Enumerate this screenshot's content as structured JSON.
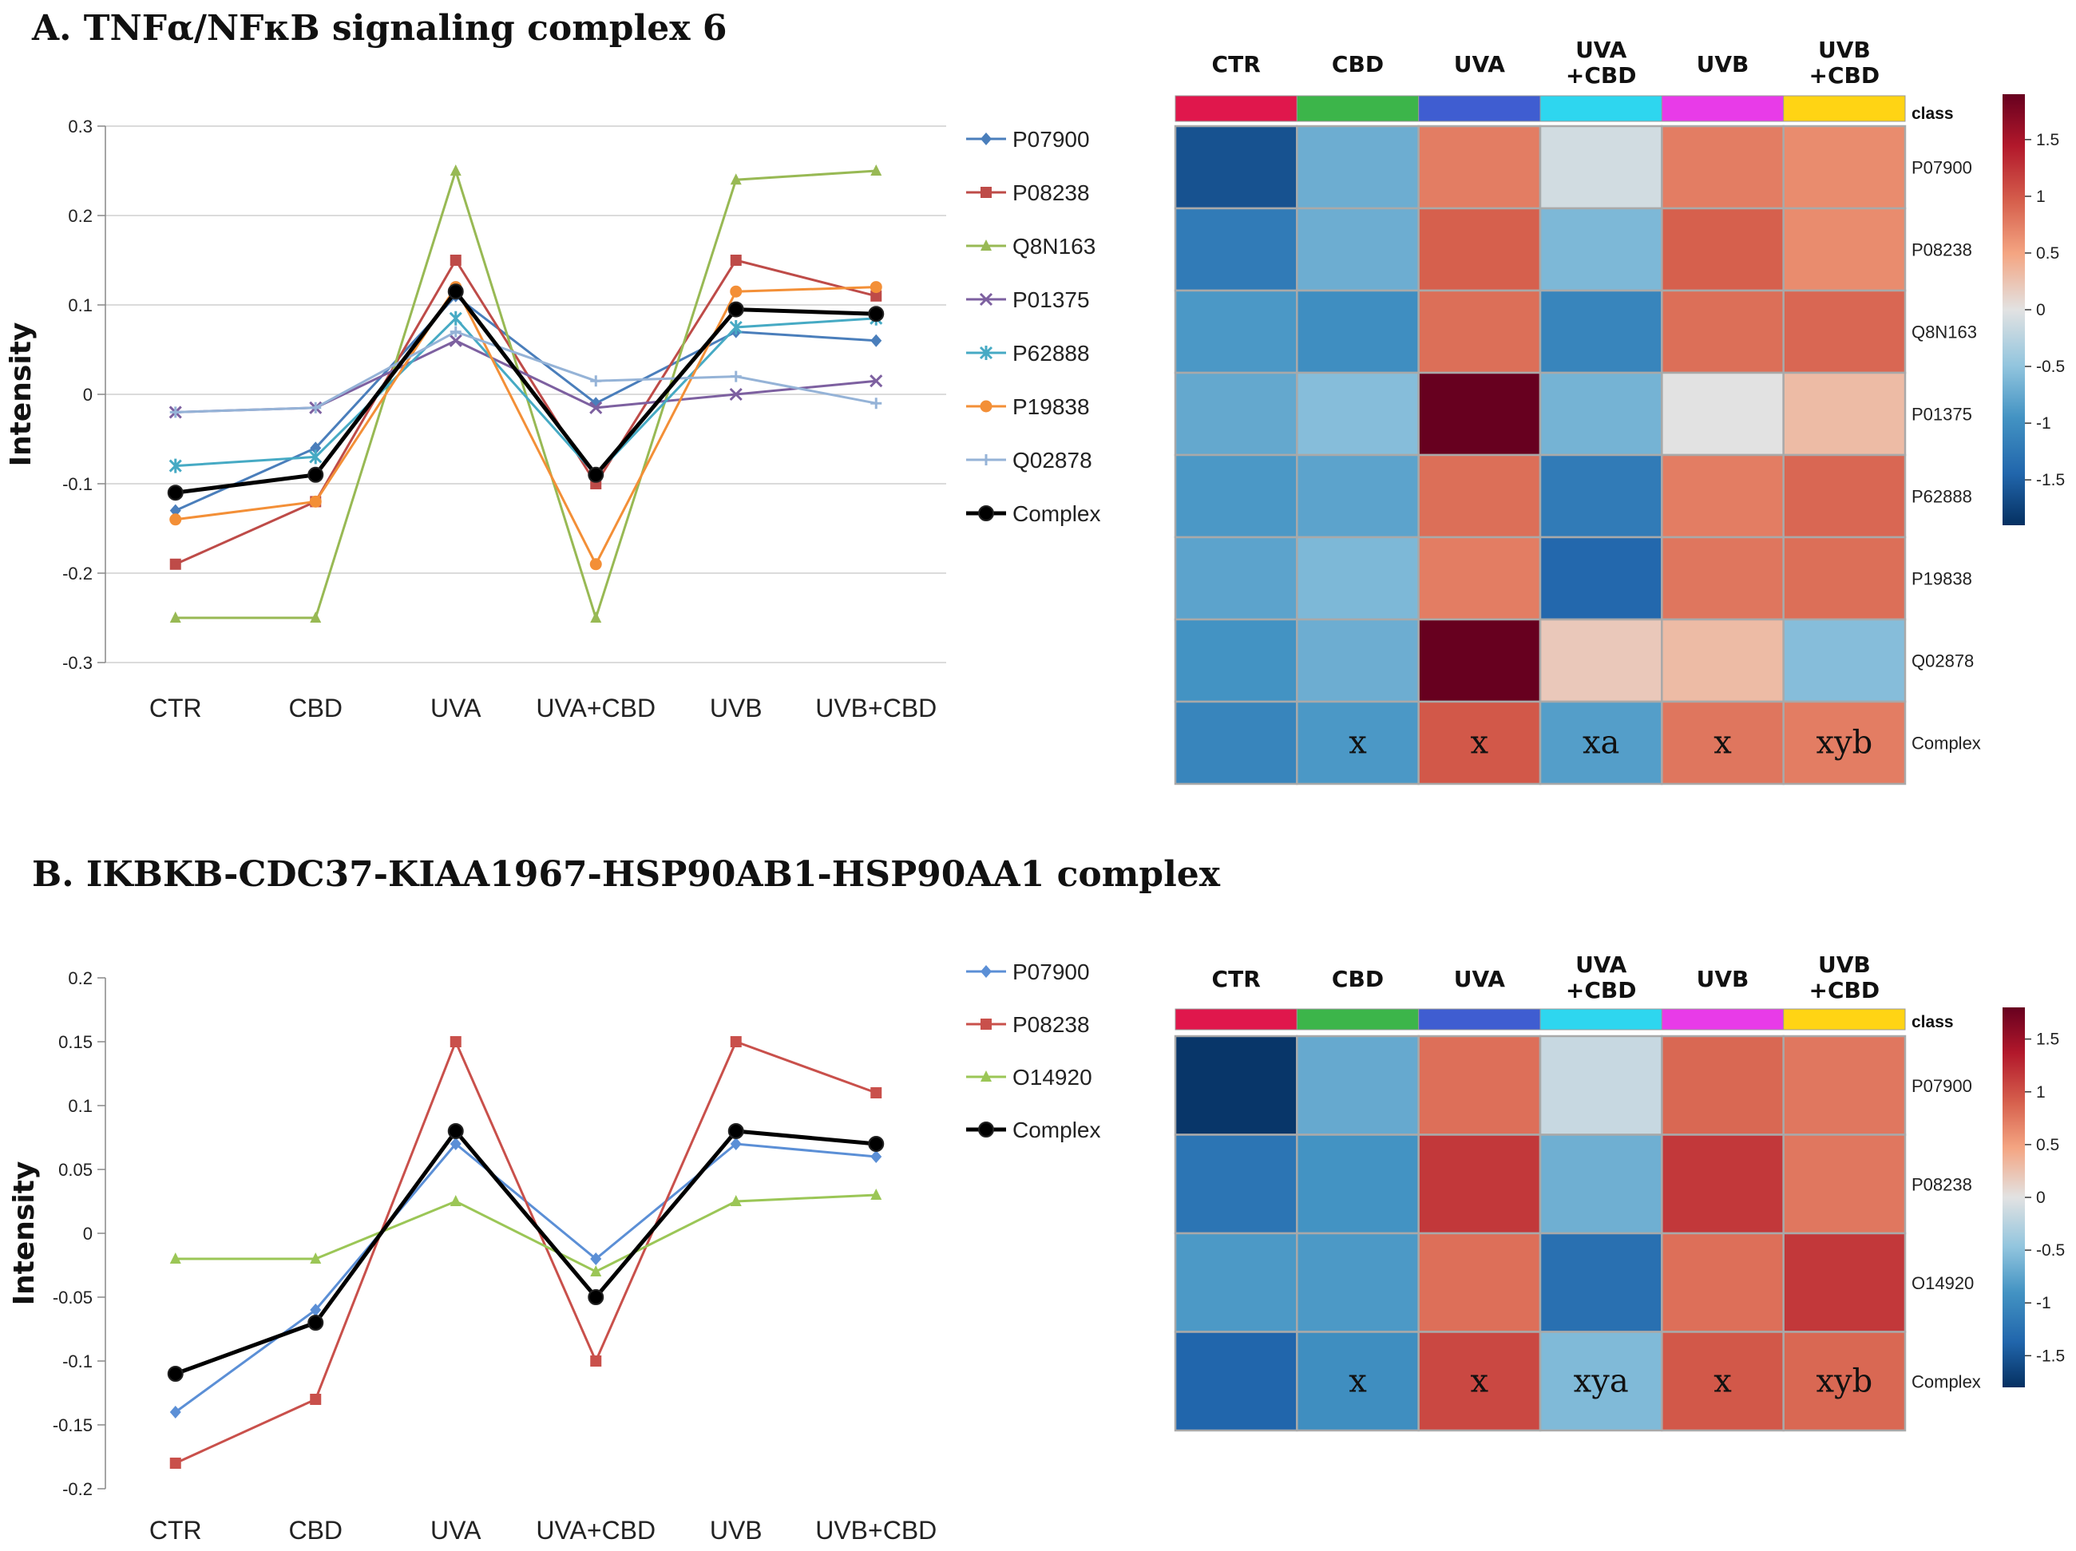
{
  "panels": {
    "a": {
      "title": "A. TNFα/NFκB signaling complex 6"
    },
    "b": {
      "title": "B. IKBKB-CDC37-KIAA1967-HSP90AB1-HSP90AA1 complex"
    }
  },
  "chart_data": [
    {
      "type": "line",
      "panel": "A",
      "title": "A. TNFα/NFκB signaling complex 6",
      "xlabel": "",
      "ylabel": "Intensity",
      "categories": [
        "CTR",
        "CBD",
        "UVA",
        "UVA+CBD",
        "UVB",
        "UVB+CBD"
      ],
      "ylim": [
        -0.3,
        0.3
      ],
      "yticks": [
        -0.3,
        -0.2,
        -0.1,
        0,
        0.1,
        0.2,
        0.3
      ],
      "ytick_labels": [
        "-0.3",
        "-0.2",
        "-0.1",
        "0",
        "0.1",
        "0.2",
        "0.3"
      ],
      "grid": true,
      "legend_position": "right",
      "series": [
        {
          "name": "P07900",
          "color": "#4a7ebb",
          "marker": "diamond",
          "values": [
            -0.13,
            -0.06,
            0.11,
            -0.01,
            0.07,
            0.06
          ]
        },
        {
          "name": "P08238",
          "color": "#be4b48",
          "marker": "square",
          "values": [
            -0.19,
            -0.12,
            0.15,
            -0.1,
            0.15,
            0.11
          ]
        },
        {
          "name": "Q8N163",
          "color": "#98b954",
          "marker": "triangle",
          "values": [
            -0.25,
            -0.25,
            0.25,
            -0.25,
            0.24,
            0.25
          ]
        },
        {
          "name": "P01375",
          "color": "#7d60a0",
          "marker": "x",
          "values": [
            -0.02,
            -0.015,
            0.06,
            -0.015,
            0.0,
            0.015
          ]
        },
        {
          "name": "P62888",
          "color": "#46aac4",
          "marker": "star",
          "values": [
            -0.08,
            -0.07,
            0.085,
            -0.09,
            0.075,
            0.085
          ]
        },
        {
          "name": "P19838",
          "color": "#f38f37",
          "marker": "circle",
          "values": [
            -0.14,
            -0.12,
            0.12,
            -0.19,
            0.115,
            0.12
          ]
        },
        {
          "name": "Q02878",
          "color": "#95b3d7",
          "marker": "plus",
          "values": [
            -0.02,
            -0.015,
            0.07,
            0.015,
            0.02,
            -0.01
          ]
        },
        {
          "name": "Complex",
          "color": "#000000",
          "marker": "circle",
          "bold": true,
          "values": [
            -0.11,
            -0.09,
            0.115,
            -0.09,
            0.095,
            0.09
          ]
        }
      ]
    },
    {
      "type": "heatmap",
      "panel": "A",
      "columns": [
        "CTR",
        "CBD",
        "UVA",
        "UVA\n+CBD",
        "UVB",
        "UVB\n+CBD"
      ],
      "class_label": "class",
      "class_colors": [
        "#e0174c",
        "#3cb54a",
        "#3f5dd1",
        "#2ed6ef",
        "#e83be8",
        "#ffd414"
      ],
      "rows": [
        "P07900",
        "P08238",
        "Q8N163",
        "P01375",
        "P62888",
        "P19838",
        "Q02878",
        "Complex"
      ],
      "values": [
        [
          -1.6,
          -0.7,
          0.75,
          -0.1,
          0.75,
          0.65
        ],
        [
          -1.2,
          -0.7,
          0.95,
          -0.6,
          0.95,
          0.65
        ],
        [
          -0.9,
          -1.0,
          0.85,
          -1.1,
          0.85,
          0.9
        ],
        [
          -0.75,
          -0.55,
          1.9,
          -0.65,
          0.0,
          0.3
        ],
        [
          -0.9,
          -0.8,
          0.85,
          -1.2,
          0.75,
          0.9
        ],
        [
          -0.8,
          -0.6,
          0.75,
          -1.4,
          0.8,
          0.85
        ],
        [
          -0.95,
          -0.7,
          1.9,
          0.2,
          0.3,
          -0.55
        ],
        [
          -1.1,
          -0.9,
          1.0,
          -0.85,
          0.8,
          0.75
        ]
      ],
      "annotations": [
        [
          "",
          "",
          "",
          "",
          "",
          ""
        ],
        [
          "",
          "",
          "",
          "",
          "",
          ""
        ],
        [
          "",
          "",
          "",
          "",
          "",
          ""
        ],
        [
          "",
          "",
          "",
          "",
          "",
          ""
        ],
        [
          "",
          "",
          "",
          "",
          "",
          ""
        ],
        [
          "",
          "",
          "",
          "",
          "",
          ""
        ],
        [
          "",
          "",
          "",
          "",
          "",
          ""
        ],
        [
          "",
          "x",
          "x",
          "xa",
          "x",
          "xyb"
        ]
      ],
      "colorbar_range": [
        -1.9,
        1.9
      ],
      "colorbar_ticks": [
        1.5,
        1,
        0.5,
        0,
        -0.5,
        -1,
        -1.5
      ],
      "colorbar_tick_labels": [
        "1.5",
        "1",
        "0.5",
        "0",
        "-0.5",
        "-1",
        "-1.5"
      ]
    },
    {
      "type": "line",
      "panel": "B",
      "title": "B. IKBKB-CDC37-KIAA1967-HSP90AB1-HSP90AA1 complex",
      "xlabel": "",
      "ylabel": "Intensity",
      "categories": [
        "CTR",
        "CBD",
        "UVA",
        "UVA+CBD",
        "UVB",
        "UVB+CBD"
      ],
      "ylim": [
        -0.2,
        0.2
      ],
      "yticks": [
        -0.2,
        -0.15,
        -0.1,
        -0.05,
        0,
        0.05,
        0.1,
        0.15,
        0.2
      ],
      "ytick_labels": [
        "-0.2",
        "-0.15",
        "-0.1",
        "-0.05",
        "0",
        "0.05",
        "0.1",
        "0.15",
        "0.2"
      ],
      "grid": false,
      "legend_position": "right",
      "series": [
        {
          "name": "P07900",
          "color": "#5b8fd6",
          "marker": "diamond",
          "values": [
            -0.14,
            -0.06,
            0.07,
            -0.02,
            0.07,
            0.06
          ]
        },
        {
          "name": "P08238",
          "color": "#c9504b",
          "marker": "square",
          "values": [
            -0.18,
            -0.13,
            0.15,
            -0.1,
            0.15,
            0.11
          ]
        },
        {
          "name": "O14920",
          "color": "#9bc656",
          "marker": "triangle",
          "values": [
            -0.02,
            -0.02,
            0.025,
            -0.03,
            0.025,
            0.03
          ]
        },
        {
          "name": "Complex",
          "color": "#000000",
          "marker": "circle",
          "bold": true,
          "values": [
            -0.11,
            -0.07,
            0.08,
            -0.05,
            0.08,
            0.07
          ]
        }
      ]
    },
    {
      "type": "heatmap",
      "panel": "B",
      "columns": [
        "CTR",
        "CBD",
        "UVA",
        "UVA\n+CBD",
        "UVB",
        "UVB\n+CBD"
      ],
      "class_label": "class",
      "class_colors": [
        "#e0174c",
        "#3cb54a",
        "#3f5dd1",
        "#2ed6ef",
        "#e83be8",
        "#ffd414"
      ],
      "rows": [
        "P07900",
        "P08238",
        "O14920",
        "Complex"
      ],
      "values": [
        [
          -1.75,
          -0.7,
          0.8,
          -0.15,
          0.85,
          0.75
        ],
        [
          -1.2,
          -0.9,
          1.15,
          -0.65,
          1.15,
          0.75
        ],
        [
          -0.85,
          -0.85,
          0.8,
          -1.25,
          0.8,
          1.15
        ],
        [
          -1.35,
          -0.95,
          1.05,
          -0.55,
          0.95,
          0.85
        ]
      ],
      "annotations": [
        [
          "",
          "",
          "",
          "",
          "",
          ""
        ],
        [
          "",
          "",
          "",
          "",
          "",
          ""
        ],
        [
          "",
          "",
          "",
          "",
          "",
          ""
        ],
        [
          "",
          "x",
          "x",
          "xya",
          "x",
          "xyb"
        ]
      ],
      "colorbar_range": [
        -1.8,
        1.8
      ],
      "colorbar_ticks": [
        1.5,
        1,
        0.5,
        0,
        -0.5,
        -1,
        -1.5
      ],
      "colorbar_tick_labels": [
        "1.5",
        "1",
        "0.5",
        "0",
        "-0.5",
        "-1",
        "-1.5"
      ]
    }
  ]
}
